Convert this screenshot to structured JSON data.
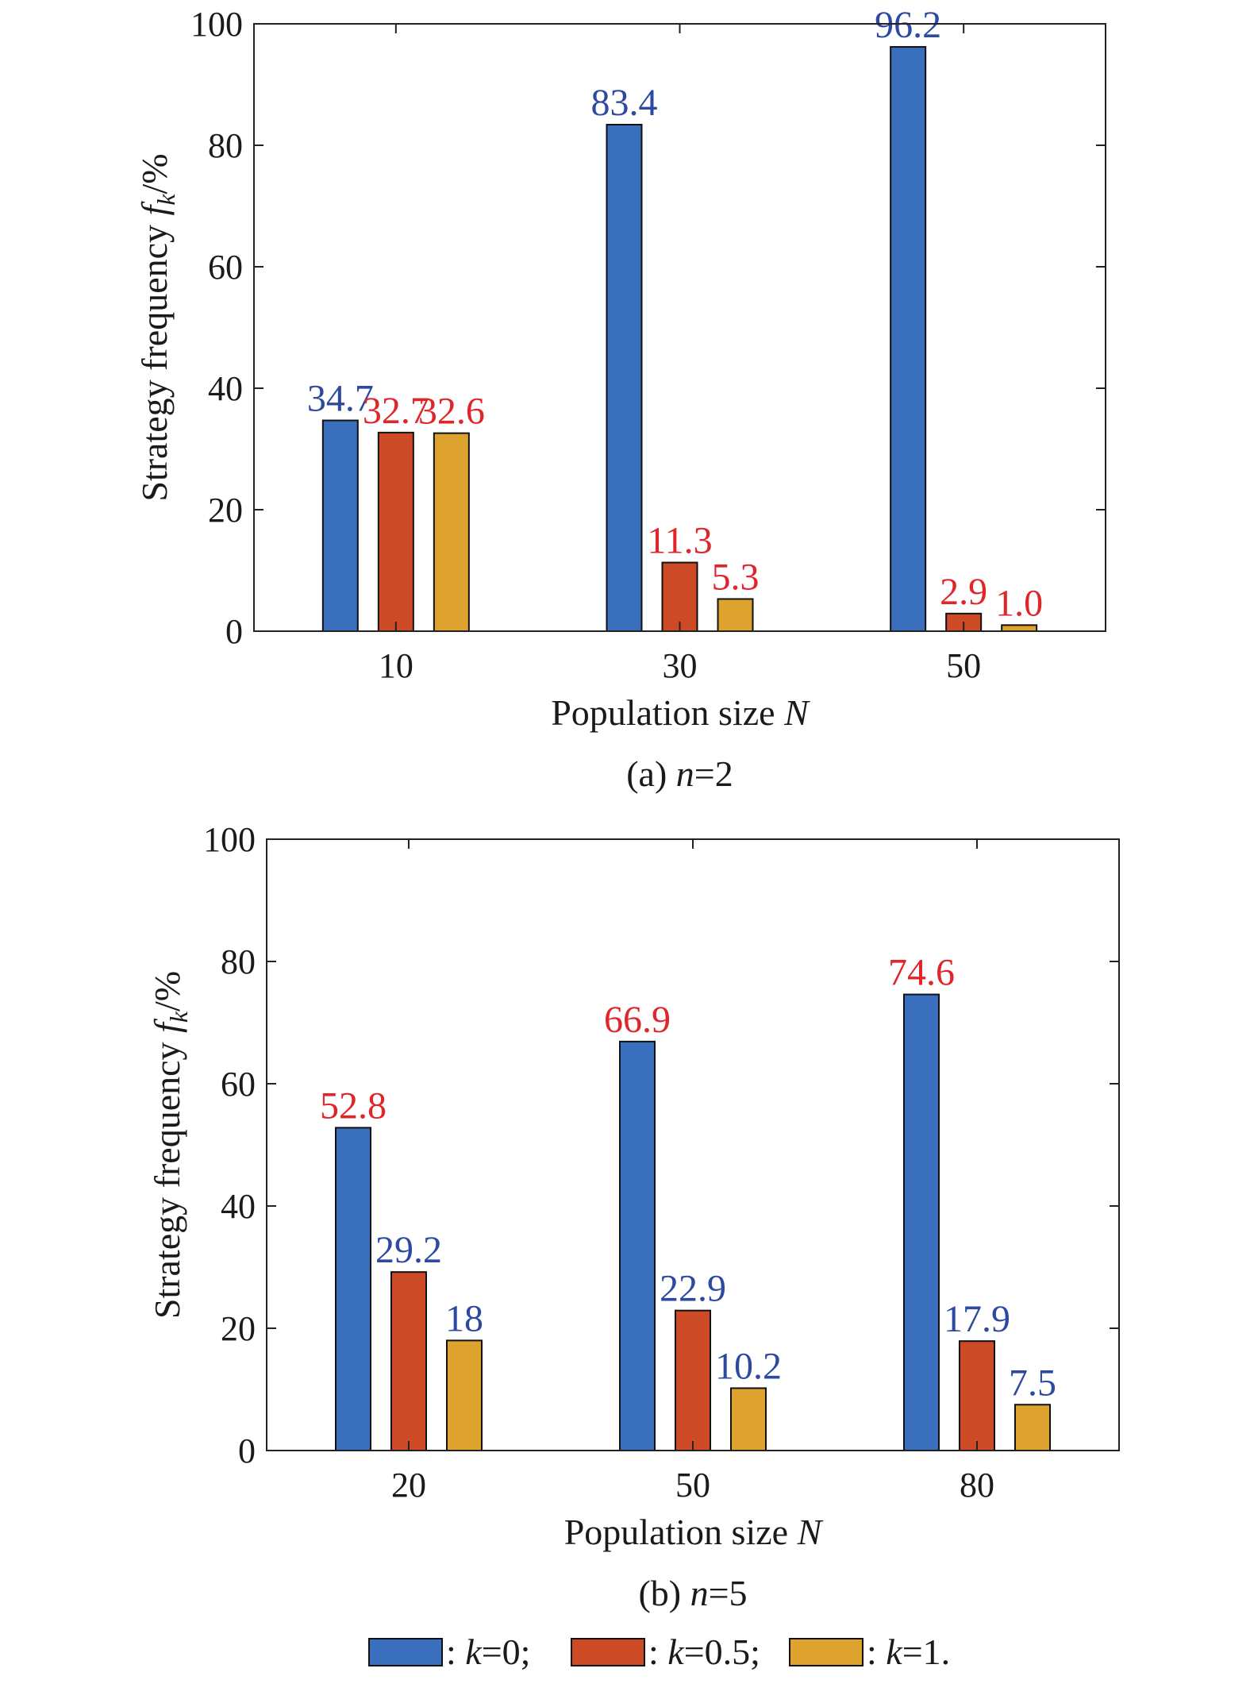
{
  "chart_data": [
    {
      "type": "bar",
      "caption": {
        "prefix": "(a) ",
        "var": "n",
        "suffix": "=2"
      },
      "xlabel": {
        "text": "Population size ",
        "var": "N"
      },
      "ylabel": {
        "text": "Strategy frequency ",
        "var": "f",
        "sub": "k",
        "suffix": "/%"
      },
      "categories": [
        "10",
        "30",
        "50"
      ],
      "ylim": [
        0,
        100
      ],
      "yticks": [
        "0",
        "20",
        "40",
        "60",
        "80",
        "100"
      ],
      "series": [
        {
          "values": [
            34.7,
            83.4,
            96.2
          ],
          "labels": [
            "34.7",
            "83.4",
            "96.2"
          ],
          "color": "#3a6fbd",
          "label_colors": [
            "#2e4aa0",
            "#2e4aa0",
            "#2e4aa0"
          ]
        },
        {
          "values": [
            32.7,
            11.3,
            2.9
          ],
          "labels": [
            "32.7",
            "11.3",
            "2.9"
          ],
          "color": "#cd4a26",
          "label_colors": [
            "#e0252b",
            "#e0252b",
            "#e0252b"
          ]
        },
        {
          "values": [
            32.6,
            5.3,
            1.0
          ],
          "labels": [
            "32.6",
            "5.3",
            "1.0"
          ],
          "color": "#dea22e",
          "label_colors": [
            "#e0252b",
            "#e0252b",
            "#e0252b"
          ]
        }
      ]
    },
    {
      "type": "bar",
      "caption": {
        "prefix": "(b) ",
        "var": "n",
        "suffix": "=5"
      },
      "xlabel": {
        "text": "Population size ",
        "var": "N"
      },
      "ylabel": {
        "text": "Strategy frequency ",
        "var": "f",
        "sub": "k",
        "suffix": "/%"
      },
      "categories": [
        "20",
        "50",
        "80"
      ],
      "ylim": [
        0,
        100
      ],
      "yticks": [
        "0",
        "20",
        "40",
        "60",
        "80",
        "100"
      ],
      "series": [
        {
          "values": [
            52.8,
            66.9,
            74.6
          ],
          "labels": [
            "52.8",
            "66.9",
            "74.6"
          ],
          "color": "#3a6fbd",
          "label_colors": [
            "#e0252b",
            "#e0252b",
            "#e0252b"
          ]
        },
        {
          "values": [
            29.2,
            22.9,
            17.9
          ],
          "labels": [
            "29.2",
            "22.9",
            "17.9"
          ],
          "color": "#cd4a26",
          "label_colors": [
            "#2e4aa0",
            "#2e4aa0",
            "#2e4aa0"
          ]
        },
        {
          "values": [
            18,
            10.2,
            7.5
          ],
          "labels": [
            "18",
            "10.2",
            "7.5"
          ],
          "color": "#dea22e",
          "label_colors": [
            "#2e4aa0",
            "#2e4aa0",
            "#2e4aa0"
          ]
        }
      ]
    }
  ],
  "legend": {
    "placement": "bottom-center",
    "items": [
      {
        "prefix": ": ",
        "var": "k",
        "suffix": "=0;",
        "color": "#3a6fbd"
      },
      {
        "prefix": ": ",
        "var": "k",
        "suffix": "=0.5;",
        "color": "#cd4a26"
      },
      {
        "prefix": ": ",
        "var": "k",
        "suffix": "=1.",
        "color": "#dea22e"
      }
    ]
  }
}
